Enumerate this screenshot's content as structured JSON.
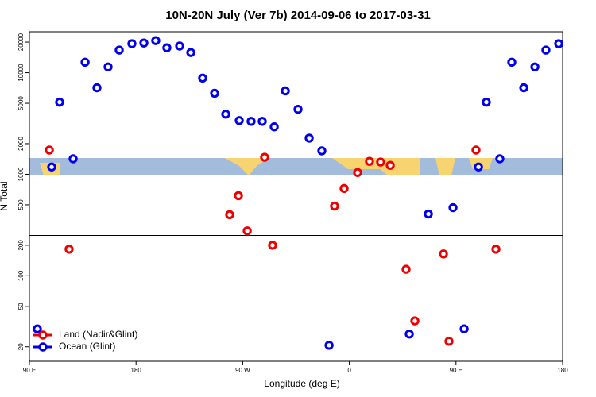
{
  "chart_data": {
    "type": "scatter",
    "title": "10N-20N July (Ver 7b)   2014-09-06 to 2017-03-31",
    "xlabel": "Longitude (deg E)",
    "ylabel": "N Total",
    "log_y": true,
    "legend": "lower left",
    "reference_line": 250,
    "xlim": [
      90,
      540
    ],
    "xticks": [
      {
        "value": 90,
        "label": "90 E"
      },
      180,
      {
        "value": 270,
        "label": "90 W"
      },
      {
        "value": 360,
        "label": "0"
      },
      {
        "value": 450,
        "label": "90 E"
      },
      {
        "value": 540,
        "label": "180"
      }
    ],
    "ylim": [
      14.4,
      25300
    ],
    "yticks": [
      20,
      50,
      100,
      200,
      500,
      1000,
      2000,
      5000,
      10000,
      20000
    ],
    "series": [
      {
        "name": "Land (Nadir&Glint)",
        "color": "#ee0000",
        "x": [
          106.8,
          123.5,
          288.5,
          259,
          266.4,
          273.8,
          295.2,
          347.5,
          355.6,
          367,
          377,
          386.4,
          394.5,
          407.9,
          415.3,
          439.4,
          444.1,
          466.9,
          483.7
        ],
        "values": [
          1730,
          183,
          1470,
          400,
          615,
          277,
          200,
          486,
          725,
          1040,
          1340,
          1320,
          1225,
          116,
          36,
          164,
          22.7,
          1730,
          183
        ]
      },
      {
        "name": "Ocean (Glint)",
        "color": "#0000ee",
        "x": [
          96.7,
          108.8,
          115.5,
          126.9,
          137,
          147,
          156.4,
          165.8,
          176.5,
          186.6,
          196.6,
          206,
          216.8,
          226.2,
          236.2,
          246.3,
          255.7,
          267.1,
          277.1,
          286.5,
          296.6,
          306,
          316.7,
          326.1,
          336.8,
          342.9,
          410.6,
          426.7,
          447.5,
          456.9,
          469,
          475.6,
          487,
          497.1,
          507.2,
          516.6,
          525.9,
          536.7
        ],
        "values": [
          30,
          1180,
          5130,
          1420,
          12700,
          7110,
          11400,
          16700,
          19300,
          19600,
          20700,
          17600,
          18300,
          15800,
          8850,
          6270,
          3910,
          3380,
          3320,
          3320,
          2930,
          6620,
          4360,
          2270,
          1700,
          20.7,
          26.7,
          406,
          469,
          30,
          1180,
          5130,
          1420,
          12700,
          7110,
          11400,
          16700,
          19300
        ]
      }
    ]
  }
}
